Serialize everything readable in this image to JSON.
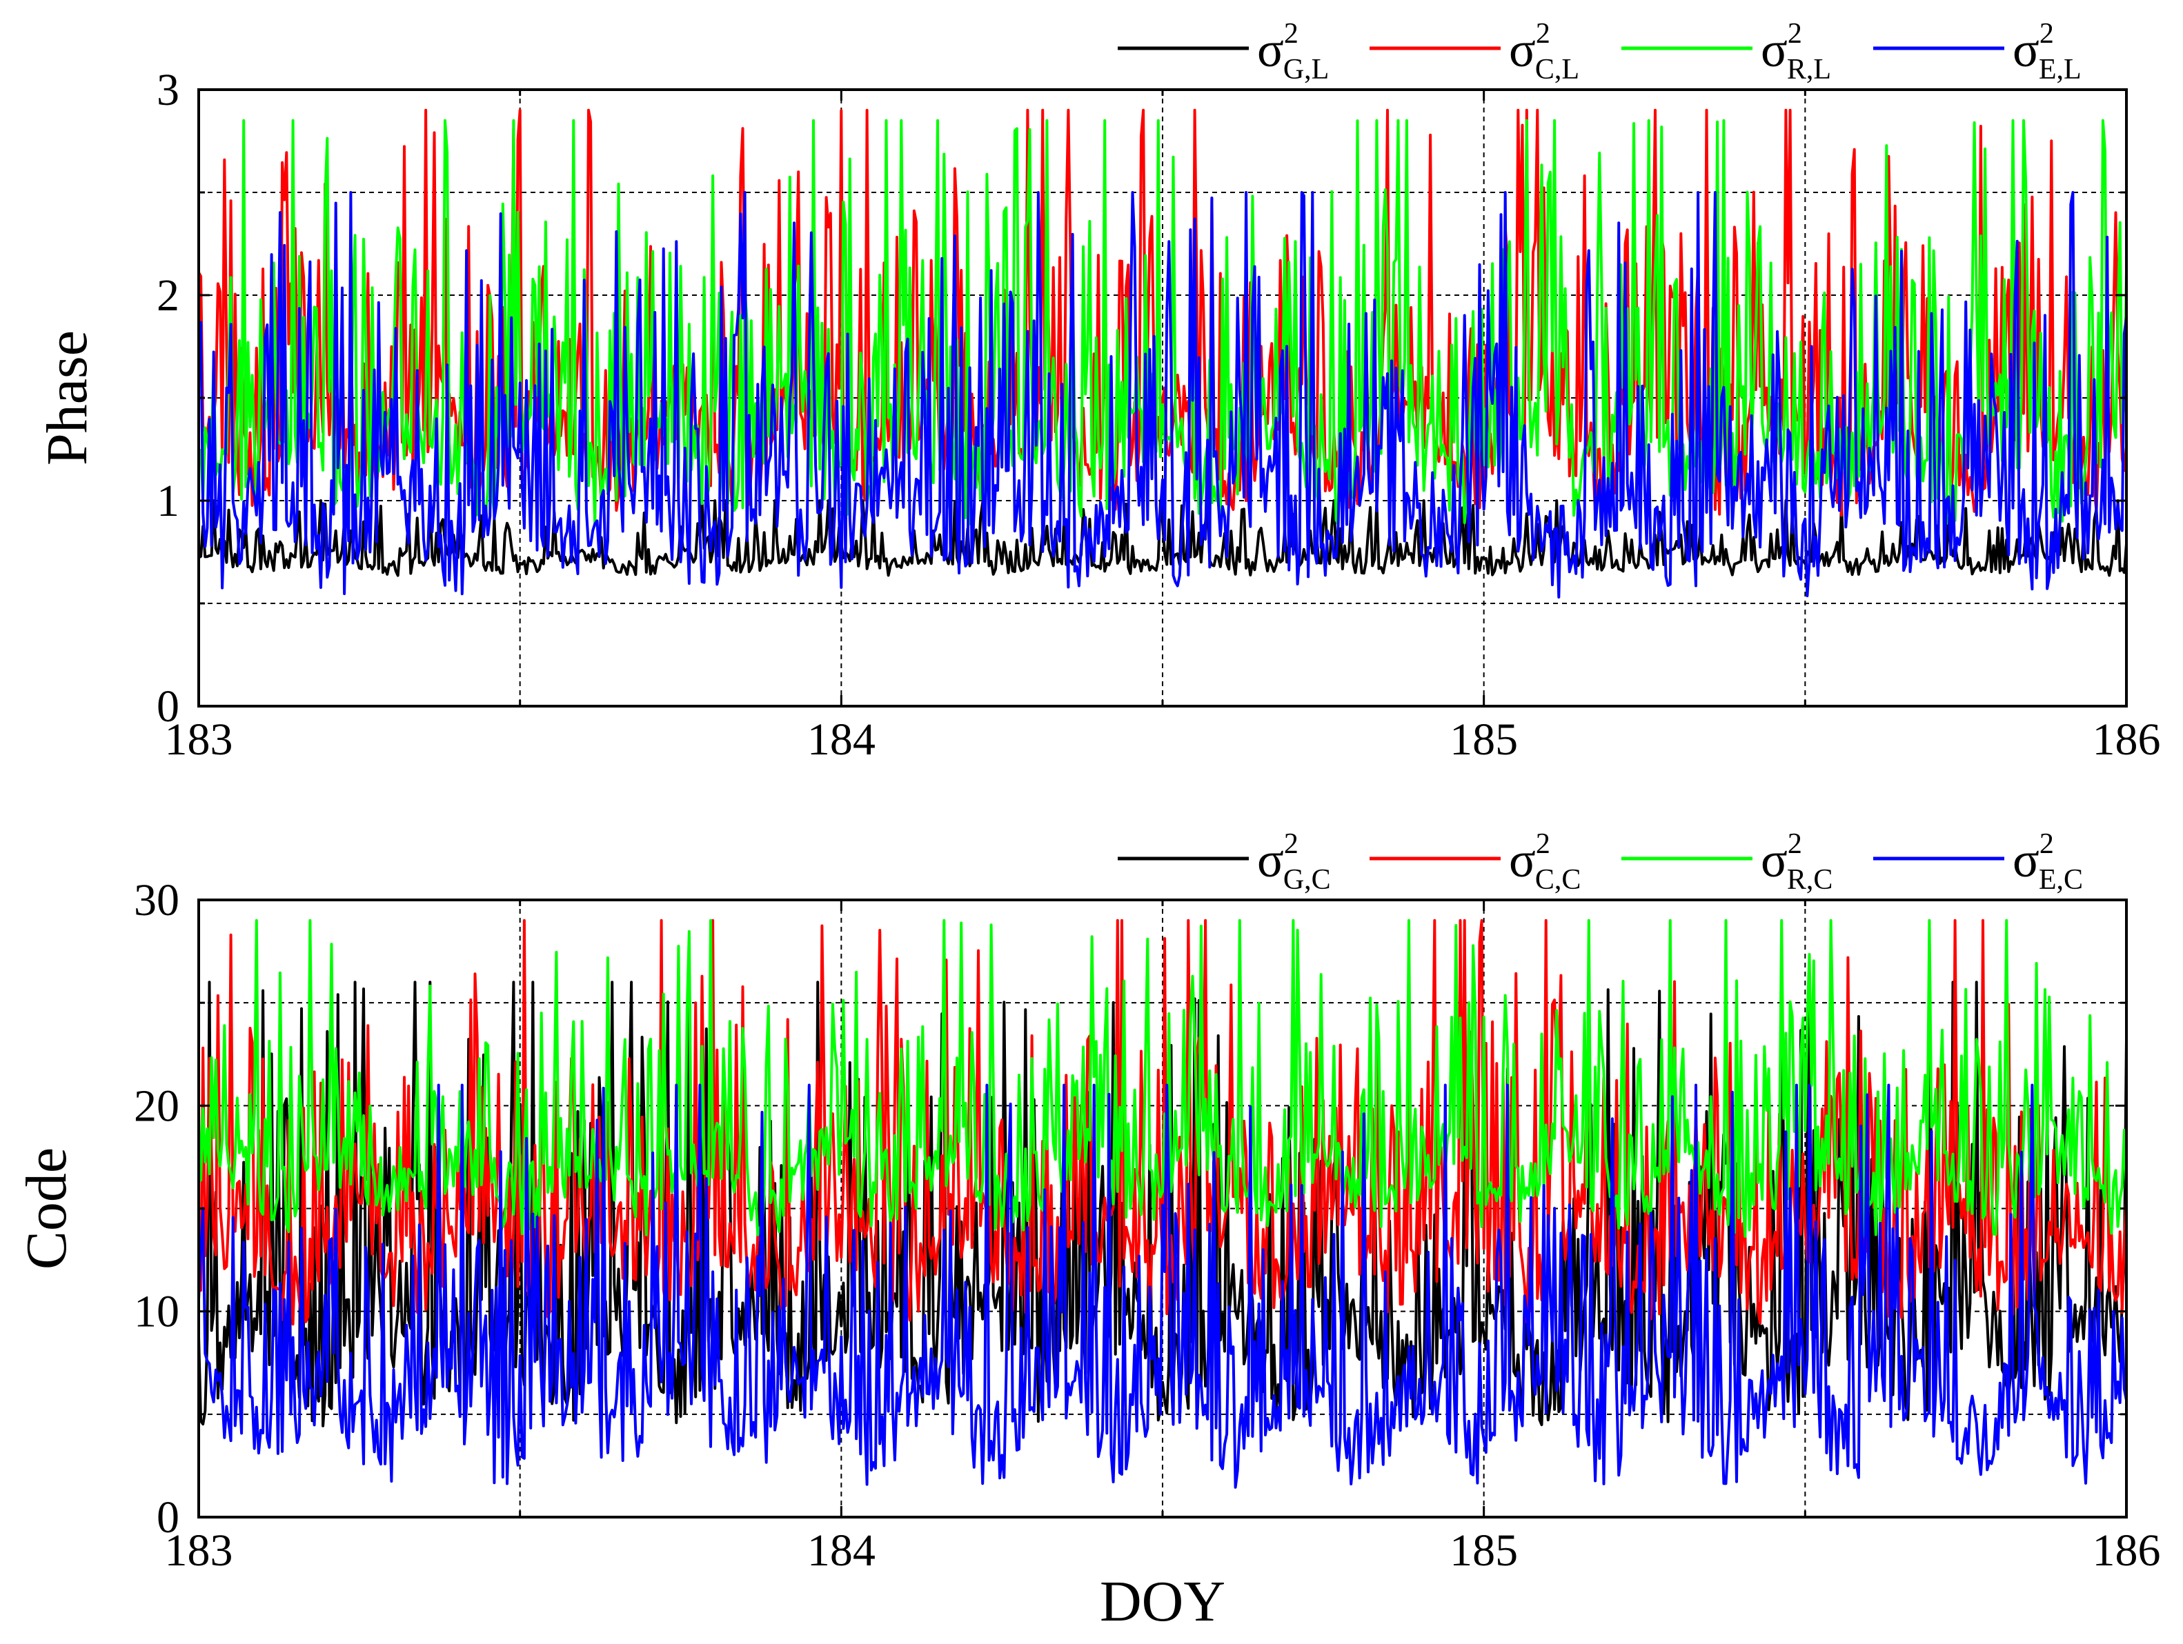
{
  "chart_data": [
    {
      "type": "line",
      "panel": "phase",
      "ylabel": "Phase",
      "xlabel": "",
      "xlim": [
        183,
        186
      ],
      "ylim": [
        0,
        3
      ],
      "xticks": [
        183,
        184,
        185,
        186
      ],
      "xtick_labels": [
        "183",
        "184",
        "185",
        "186"
      ],
      "xgrid": [
        183.5,
        184,
        184.5,
        185,
        185.5
      ],
      "yticks": [
        0,
        1,
        2,
        3
      ],
      "ytick_labels": [
        "0",
        "1",
        "2",
        "3"
      ],
      "ygrid": [
        0.5,
        1,
        1.5,
        2,
        2.5
      ],
      "grid": "dashed",
      "legend_position": "top-right, above the plot",
      "legend": [
        {
          "key": "GL",
          "sym": "σ",
          "sup": "2",
          "sub": "G,L"
        },
        {
          "key": "CL",
          "sym": "σ",
          "sup": "2",
          "sub": "C,L"
        },
        {
          "key": "RL",
          "sym": "σ",
          "sup": "2",
          "sub": "R,L"
        },
        {
          "key": "EL",
          "sym": "σ",
          "sup": "2",
          "sub": "E,L"
        }
      ],
      "series": [
        {
          "key": "GL",
          "color": "#000000",
          "n": 900,
          "low": 0.62,
          "peak_max": 1.0,
          "seed": 1
        },
        {
          "key": "CL",
          "color": "#ff0000",
          "n": 900,
          "low": 0.85,
          "peak_max": 2.9,
          "seed": 2
        },
        {
          "key": "RL",
          "color": "#00ff00",
          "n": 900,
          "low": 0.8,
          "peak_max": 2.85,
          "seed": 3
        },
        {
          "key": "EL",
          "color": "#0000ff",
          "n": 900,
          "low": 0.45,
          "peak_max": 2.5,
          "seed": 4
        }
      ]
    },
    {
      "type": "line",
      "panel": "code",
      "ylabel": "Code",
      "xlabel": "DOY",
      "xlim": [
        183,
        186
      ],
      "ylim": [
        0,
        30
      ],
      "xticks": [
        183,
        184,
        185,
        186
      ],
      "xtick_labels": [
        "183",
        "184",
        "185",
        "186"
      ],
      "xgrid": [
        183.5,
        184,
        184.5,
        185,
        185.5
      ],
      "yticks": [
        0,
        10,
        20,
        30
      ],
      "ytick_labels": [
        "0",
        "10",
        "20",
        "30"
      ],
      "ygrid": [
        5,
        10,
        15,
        20,
        25
      ],
      "grid": "dashed",
      "legend_position": "top-right, above the plot",
      "legend": [
        {
          "key": "GC",
          "sym": "σ",
          "sup": "2",
          "sub": "G,C"
        },
        {
          "key": "CC",
          "sym": "σ",
          "sup": "2",
          "sub": "C,C"
        },
        {
          "key": "RC",
          "sym": "σ",
          "sup": "2",
          "sub": "R,C"
        },
        {
          "key": "EC",
          "sym": "σ",
          "sup": "2",
          "sub": "E,C"
        }
      ],
      "series": [
        {
          "key": "GC",
          "color": "#000000",
          "n": 900,
          "low": 3.5,
          "peak_max": 26,
          "seed": 5
        },
        {
          "key": "CC",
          "color": "#ff0000",
          "n": 900,
          "low": 8.5,
          "peak_max": 29,
          "seed": 6
        },
        {
          "key": "RC",
          "color": "#00ff00",
          "n": 900,
          "low": 13,
          "peak_max": 29,
          "seed": 7
        },
        {
          "key": "EC",
          "color": "#0000ff",
          "n": 900,
          "low": 0.7,
          "peak_max": 21,
          "seed": 8
        }
      ]
    }
  ]
}
